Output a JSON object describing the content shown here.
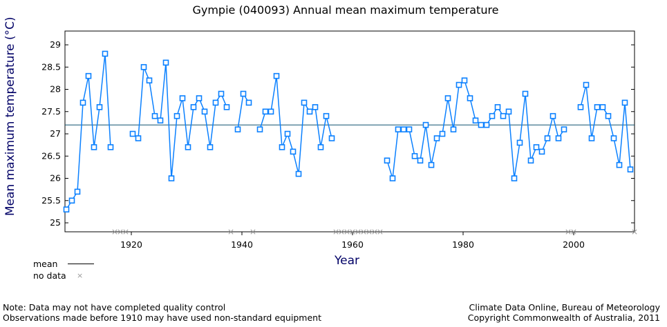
{
  "chart_data": {
    "type": "line",
    "title": "Gympie (040093) Annual mean maximum temperature",
    "xlabel": "Year",
    "ylabel": "Mean maximum temperature (°C)",
    "xlim": [
      1908,
      2011
    ],
    "ylim": [
      24.8,
      29.3
    ],
    "xticks": [
      1920,
      1940,
      1960,
      1980,
      2000
    ],
    "yticks": [
      25,
      25.5,
      26,
      26.5,
      27,
      27.5,
      28,
      28.5,
      29
    ],
    "mean": 27.2,
    "series": [
      {
        "name": "",
        "color": "#0a80ff",
        "points": [
          [
            1908,
            25.3
          ],
          [
            1909,
            25.5
          ],
          [
            1910,
            25.7
          ],
          [
            1911,
            27.7
          ],
          [
            1912,
            28.3
          ],
          [
            1913,
            26.7
          ],
          [
            1914,
            27.6
          ],
          [
            1915,
            28.8
          ],
          [
            1916,
            26.7
          ],
          [
            1917,
            null
          ],
          [
            1918,
            null
          ],
          [
            1919,
            null
          ],
          [
            1920,
            27.0
          ],
          [
            1921,
            26.9
          ],
          [
            1922,
            28.5
          ],
          [
            1923,
            28.2
          ],
          [
            1924,
            27.4
          ],
          [
            1925,
            27.3
          ],
          [
            1926,
            28.6
          ],
          [
            1927,
            26.0
          ],
          [
            1928,
            27.4
          ],
          [
            1929,
            27.8
          ],
          [
            1930,
            26.7
          ],
          [
            1931,
            27.6
          ],
          [
            1932,
            27.8
          ],
          [
            1933,
            27.5
          ],
          [
            1934,
            26.7
          ],
          [
            1935,
            27.7
          ],
          [
            1936,
            27.9
          ],
          [
            1937,
            27.6
          ],
          [
            1938,
            null
          ],
          [
            1939,
            27.1
          ],
          [
            1940,
            27.9
          ],
          [
            1941,
            27.7
          ],
          [
            1942,
            null
          ],
          [
            1943,
            27.1
          ],
          [
            1944,
            27.5
          ],
          [
            1945,
            27.5
          ],
          [
            1946,
            28.3
          ],
          [
            1947,
            26.7
          ],
          [
            1948,
            27.0
          ],
          [
            1949,
            26.6
          ],
          [
            1950,
            26.1
          ],
          [
            1951,
            27.7
          ],
          [
            1952,
            27.5
          ],
          [
            1953,
            27.6
          ],
          [
            1954,
            26.7
          ],
          [
            1955,
            27.4
          ],
          [
            1956,
            26.9
          ],
          [
            1957,
            null
          ],
          [
            1958,
            null
          ],
          [
            1959,
            null
          ],
          [
            1960,
            null
          ],
          [
            1961,
            null
          ],
          [
            1962,
            null
          ],
          [
            1963,
            null
          ],
          [
            1964,
            null
          ],
          [
            1965,
            null
          ],
          [
            1966,
            26.4
          ],
          [
            1967,
            26.0
          ],
          [
            1968,
            27.1
          ],
          [
            1969,
            27.1
          ],
          [
            1970,
            27.1
          ],
          [
            1971,
            26.5
          ],
          [
            1972,
            26.4
          ],
          [
            1973,
            27.2
          ],
          [
            1974,
            26.3
          ],
          [
            1975,
            26.9
          ],
          [
            1976,
            27.0
          ],
          [
            1977,
            27.8
          ],
          [
            1978,
            27.1
          ],
          [
            1979,
            28.1
          ],
          [
            1980,
            28.2
          ],
          [
            1981,
            27.8
          ],
          [
            1982,
            27.3
          ],
          [
            1983,
            27.2
          ],
          [
            1984,
            27.2
          ],
          [
            1985,
            27.4
          ],
          [
            1986,
            27.6
          ],
          [
            1987,
            27.4
          ],
          [
            1988,
            27.5
          ],
          [
            1989,
            26.0
          ],
          [
            1990,
            26.8
          ],
          [
            1991,
            27.9
          ],
          [
            1992,
            26.4
          ],
          [
            1993,
            26.7
          ],
          [
            1994,
            26.6
          ],
          [
            1995,
            26.9
          ],
          [
            1996,
            27.4
          ],
          [
            1997,
            26.9
          ],
          [
            1998,
            27.1
          ],
          [
            1999,
            null
          ],
          [
            2000,
            null
          ],
          [
            2001,
            27.6
          ],
          [
            2002,
            28.1
          ],
          [
            2003,
            26.9
          ],
          [
            2004,
            27.6
          ],
          [
            2005,
            27.6
          ],
          [
            2006,
            27.4
          ],
          [
            2007,
            26.9
          ],
          [
            2008,
            26.3
          ],
          [
            2009,
            27.7
          ],
          [
            2010,
            26.2
          ],
          [
            2011,
            null
          ]
        ]
      }
    ],
    "legend": {
      "mean_label": "mean",
      "nodata_label": "no data",
      "placement": "bottom-left"
    },
    "grid": false
  },
  "notes": {
    "left1": "Note: Data may not have completed quality control",
    "left2": "Observations made before 1910 may have used non-standard equipment",
    "right1": "Climate Data Online, Bureau of Meteorology",
    "right2": "Copyright Commonwealth of Australia, 2011"
  }
}
